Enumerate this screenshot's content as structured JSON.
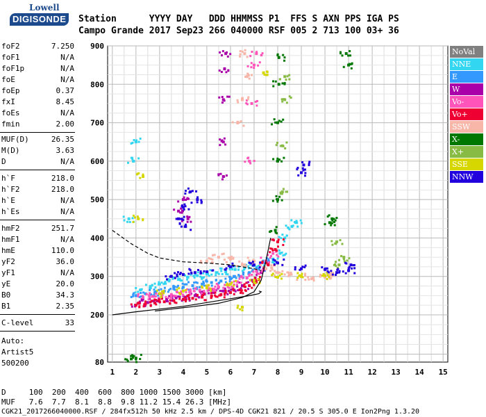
{
  "logo": {
    "brand": "Lowell",
    "name": "DIGISONDE"
  },
  "header": {
    "row1": "Station      YYYY DAY   DDD HHMMSS P1  FFS S AXN PPS IGA PS",
    "row2": "Campo Grande 2017 Sep23 266 040000 RSF 005 2 713 100 03+ 36"
  },
  "params": {
    "group1": [
      {
        "name": "foF2",
        "value": "7.250"
      },
      {
        "name": "foF1",
        "value": "N/A"
      },
      {
        "name": "foF1p",
        "value": "N/A"
      },
      {
        "name": "foE",
        "value": "N/A"
      },
      {
        "name": "foEp",
        "value": "0.37"
      },
      {
        "name": "fxI",
        "value": "8.45"
      },
      {
        "name": "foEs",
        "value": "N/A"
      },
      {
        "name": "fmin",
        "value": "2.00"
      }
    ],
    "group2": [
      {
        "name": "MUF(D)",
        "value": "26.35"
      },
      {
        "name": "M(D)",
        "value": "3.63"
      },
      {
        "name": "D",
        "value": "N/A"
      }
    ],
    "group3": [
      {
        "name": "h`F",
        "value": "218.0"
      },
      {
        "name": "h`F2",
        "value": "218.0"
      },
      {
        "name": "h`E",
        "value": "N/A"
      },
      {
        "name": "h`Es",
        "value": "N/A"
      }
    ],
    "group4": [
      {
        "name": "hmF2",
        "value": "251.7"
      },
      {
        "name": "hmF1",
        "value": "N/A"
      },
      {
        "name": "hmE",
        "value": "110.0"
      },
      {
        "name": "yF2",
        "value": "36.0"
      },
      {
        "name": "yF1",
        "value": "N/A"
      },
      {
        "name": "yE",
        "value": "20.0"
      },
      {
        "name": "B0",
        "value": "34.3"
      },
      {
        "name": "B1",
        "value": "2.35"
      }
    ],
    "clevel": {
      "name": "C-level",
      "value": "33"
    },
    "auto": [
      "Auto:",
      "Artist5",
      "500200"
    ]
  },
  "legend": [
    {
      "label": "NoVal",
      "color": "#808080"
    },
    {
      "label": "NNE",
      "color": "#33d6f0"
    },
    {
      "label": "E",
      "color": "#3399ff"
    },
    {
      "label": "W",
      "color": "#aa00aa"
    },
    {
      "label": "Vo-",
      "color": "#ff55bb"
    },
    {
      "label": "Vo+",
      "color": "#ee0033"
    },
    {
      "label": "SSW",
      "color": "#f7b6a8"
    },
    {
      "label": "X-",
      "color": "#007700"
    },
    {
      "label": "X+",
      "color": "#88bb44"
    },
    {
      "label": "SSE",
      "color": "#d6d600"
    },
    {
      "label": "NNW",
      "color": "#2200dd"
    }
  ],
  "chart_data": {
    "type": "scatter",
    "title": "",
    "xlabel": "",
    "ylabel": "",
    "xlim": [
      0.8,
      15.2
    ],
    "ylim": [
      80,
      900
    ],
    "xticks": [
      1,
      2,
      3,
      4,
      5,
      6,
      7,
      8,
      9,
      10,
      11,
      12,
      13,
      14,
      15
    ],
    "yticks": [
      80,
      200,
      300,
      400,
      500,
      600,
      700,
      800,
      900
    ],
    "grid": true,
    "legend_position": "right",
    "clusters": [
      {
        "series": "NNE",
        "points": [
          [
            2.2,
            265
          ],
          [
            2.6,
            270
          ],
          [
            3.0,
            280
          ],
          [
            3.4,
            288
          ],
          [
            3.8,
            292
          ],
          [
            4.2,
            298
          ],
          [
            4.6,
            302
          ],
          [
            5.0,
            306
          ],
          [
            5.4,
            310
          ],
          [
            5.8,
            312
          ],
          [
            6.2,
            318
          ],
          [
            6.6,
            322
          ],
          [
            7.0,
            328
          ],
          [
            7.4,
            335
          ],
          [
            7.8,
            345
          ],
          [
            8.1,
            360
          ],
          [
            8.3,
            400
          ],
          [
            8.6,
            430
          ],
          [
            8.8,
            440
          ],
          [
            1.9,
            600
          ],
          [
            2.0,
            650
          ],
          [
            1.7,
            450
          ]
        ]
      },
      {
        "series": "E",
        "points": [
          [
            2.0,
            250
          ],
          [
            2.4,
            255
          ],
          [
            2.8,
            258
          ],
          [
            3.2,
            262
          ],
          [
            3.6,
            268
          ],
          [
            4.0,
            272
          ],
          [
            4.4,
            276
          ],
          [
            4.8,
            280
          ],
          [
            5.2,
            284
          ],
          [
            5.6,
            288
          ],
          [
            6.0,
            294
          ],
          [
            6.4,
            300
          ],
          [
            6.8,
            310
          ],
          [
            7.2,
            320
          ],
          [
            7.6,
            340
          ]
        ]
      },
      {
        "series": "W",
        "points": [
          [
            2.1,
            230
          ],
          [
            2.5,
            232
          ],
          [
            2.9,
            236
          ],
          [
            3.3,
            240
          ],
          [
            3.7,
            244
          ],
          [
            4.1,
            246
          ],
          [
            4.5,
            250
          ],
          [
            4.9,
            254
          ],
          [
            5.3,
            258
          ],
          [
            5.7,
            262
          ],
          [
            6.1,
            268
          ],
          [
            6.5,
            276
          ],
          [
            6.9,
            290
          ],
          [
            7.3,
            310
          ],
          [
            5.7,
            560
          ],
          [
            5.7,
            650
          ],
          [
            5.7,
            760
          ],
          [
            5.75,
            840
          ],
          [
            5.8,
            880
          ],
          [
            3.8,
            470
          ],
          [
            4.0,
            500
          ],
          [
            4.2,
            450
          ]
        ]
      },
      {
        "series": "Vo-",
        "points": [
          [
            2.3,
            245
          ],
          [
            2.7,
            248
          ],
          [
            3.1,
            250
          ],
          [
            3.5,
            253
          ],
          [
            3.9,
            256
          ],
          [
            4.3,
            260
          ],
          [
            4.7,
            264
          ],
          [
            5.1,
            268
          ],
          [
            5.5,
            272
          ],
          [
            5.9,
            278
          ],
          [
            6.3,
            286
          ],
          [
            6.7,
            296
          ],
          [
            7.1,
            314
          ],
          [
            7.5,
            340
          ],
          [
            7.8,
            360
          ],
          [
            6.8,
            600
          ],
          [
            6.9,
            750
          ],
          [
            7.0,
            850
          ],
          [
            7.1,
            880
          ]
        ]
      },
      {
        "series": "Vo+",
        "points": [
          [
            2.0,
            225
          ],
          [
            2.4,
            228
          ],
          [
            2.8,
            231
          ],
          [
            3.2,
            234
          ],
          [
            3.6,
            237
          ],
          [
            4.0,
            240
          ],
          [
            4.4,
            243
          ],
          [
            4.8,
            246
          ],
          [
            5.2,
            249
          ],
          [
            5.6,
            253
          ],
          [
            6.0,
            258
          ],
          [
            6.4,
            265
          ],
          [
            6.8,
            276
          ],
          [
            7.2,
            292
          ],
          [
            7.6,
            330
          ],
          [
            7.9,
            370
          ],
          [
            8.0,
            390
          ]
        ]
      },
      {
        "series": "SSW",
        "points": [
          [
            5.0,
            340
          ],
          [
            5.5,
            350
          ],
          [
            6.0,
            345
          ],
          [
            6.5,
            330
          ],
          [
            7.0,
            340
          ],
          [
            7.5,
            320
          ],
          [
            8.0,
            310
          ],
          [
            8.5,
            305
          ],
          [
            9.0,
            300
          ],
          [
            9.5,
            295
          ],
          [
            10.0,
            298
          ],
          [
            10.3,
            302
          ],
          [
            6.3,
            700
          ],
          [
            6.5,
            760
          ],
          [
            6.7,
            820
          ],
          [
            6.6,
            880
          ]
        ]
      },
      {
        "series": "X-",
        "points": [
          [
            7.9,
            420
          ],
          [
            8.0,
            500
          ],
          [
            8.0,
            600
          ],
          [
            8.0,
            700
          ],
          [
            8.05,
            800
          ],
          [
            8.05,
            870
          ],
          [
            10.2,
            440
          ],
          [
            10.3,
            450
          ],
          [
            10.9,
            880
          ],
          [
            11.0,
            850
          ],
          [
            1.8,
            88
          ],
          [
            2.0,
            90
          ]
        ]
      },
      {
        "series": "X+",
        "points": [
          [
            8.2,
            520
          ],
          [
            8.2,
            640
          ],
          [
            8.3,
            760
          ],
          [
            8.3,
            820
          ],
          [
            10.5,
            390
          ],
          [
            10.6,
            330
          ],
          [
            10.8,
            350
          ]
        ]
      },
      {
        "series": "SSE",
        "points": [
          [
            3.0,
            255
          ],
          [
            4.0,
            262
          ],
          [
            5.0,
            270
          ],
          [
            6.0,
            280
          ],
          [
            7.0,
            290
          ],
          [
            8.0,
            298
          ],
          [
            9.0,
            300
          ],
          [
            10.0,
            302
          ],
          [
            2.1,
            450
          ],
          [
            2.3,
            560
          ],
          [
            6.5,
            220
          ],
          [
            7.4,
            830
          ]
        ]
      },
      {
        "series": "NNW",
        "points": [
          [
            3.5,
            300
          ],
          [
            4.0,
            305
          ],
          [
            4.5,
            310
          ],
          [
            5.0,
            312
          ],
          [
            6.0,
            325
          ],
          [
            7.0,
            330
          ],
          [
            8.0,
            335
          ],
          [
            9.0,
            320
          ],
          [
            10.0,
            318
          ],
          [
            10.5,
            310
          ],
          [
            11.0,
            315
          ],
          [
            11.1,
            330
          ],
          [
            3.8,
            450
          ],
          [
            4.0,
            480
          ],
          [
            4.3,
            520
          ],
          [
            4.6,
            500
          ],
          [
            4.1,
            430
          ],
          [
            9.0,
            570
          ],
          [
            9.1,
            590
          ]
        ]
      }
    ],
    "curves": [
      {
        "style": "dashed",
        "points": [
          [
            1.0,
            420
          ],
          [
            1.8,
            385
          ],
          [
            2.5,
            360
          ],
          [
            3.0,
            348
          ],
          [
            4.0,
            338
          ],
          [
            5.0,
            335
          ],
          [
            6.0,
            330
          ],
          [
            7.0,
            320
          ],
          [
            7.3,
            315
          ]
        ]
      },
      {
        "style": "solid",
        "points": [
          [
            1.0,
            200
          ],
          [
            2.0,
            208
          ],
          [
            3.0,
            215
          ],
          [
            4.0,
            222
          ],
          [
            5.0,
            232
          ],
          [
            6.0,
            242
          ],
          [
            6.8,
            250
          ],
          [
            7.2,
            255
          ],
          [
            7.3,
            260
          ],
          [
            7.2,
            262
          ]
        ]
      },
      {
        "style": "solid",
        "points": [
          [
            2.8,
            210
          ],
          [
            3.5,
            215
          ],
          [
            4.5,
            222
          ],
          [
            5.5,
            230
          ],
          [
            6.5,
            245
          ],
          [
            7.0,
            260
          ],
          [
            7.3,
            290
          ],
          [
            7.5,
            340
          ],
          [
            7.7,
            400
          ]
        ]
      }
    ]
  },
  "bottom": {
    "line1": "D     100  200  400  600  800 1000 1500 3000 [km]",
    "line2": "MUF   7.6  7.7  8.1  8.8  9.8 11.2 15.4 26.3 [MHz]",
    "line3": "CGK21_2017266040000.RSF / 284fx512h 50 kHz 2.5 km / DPS-4D CGK21 821 / 20.5 S 305.0 E Ion2Png 1.3.20"
  }
}
